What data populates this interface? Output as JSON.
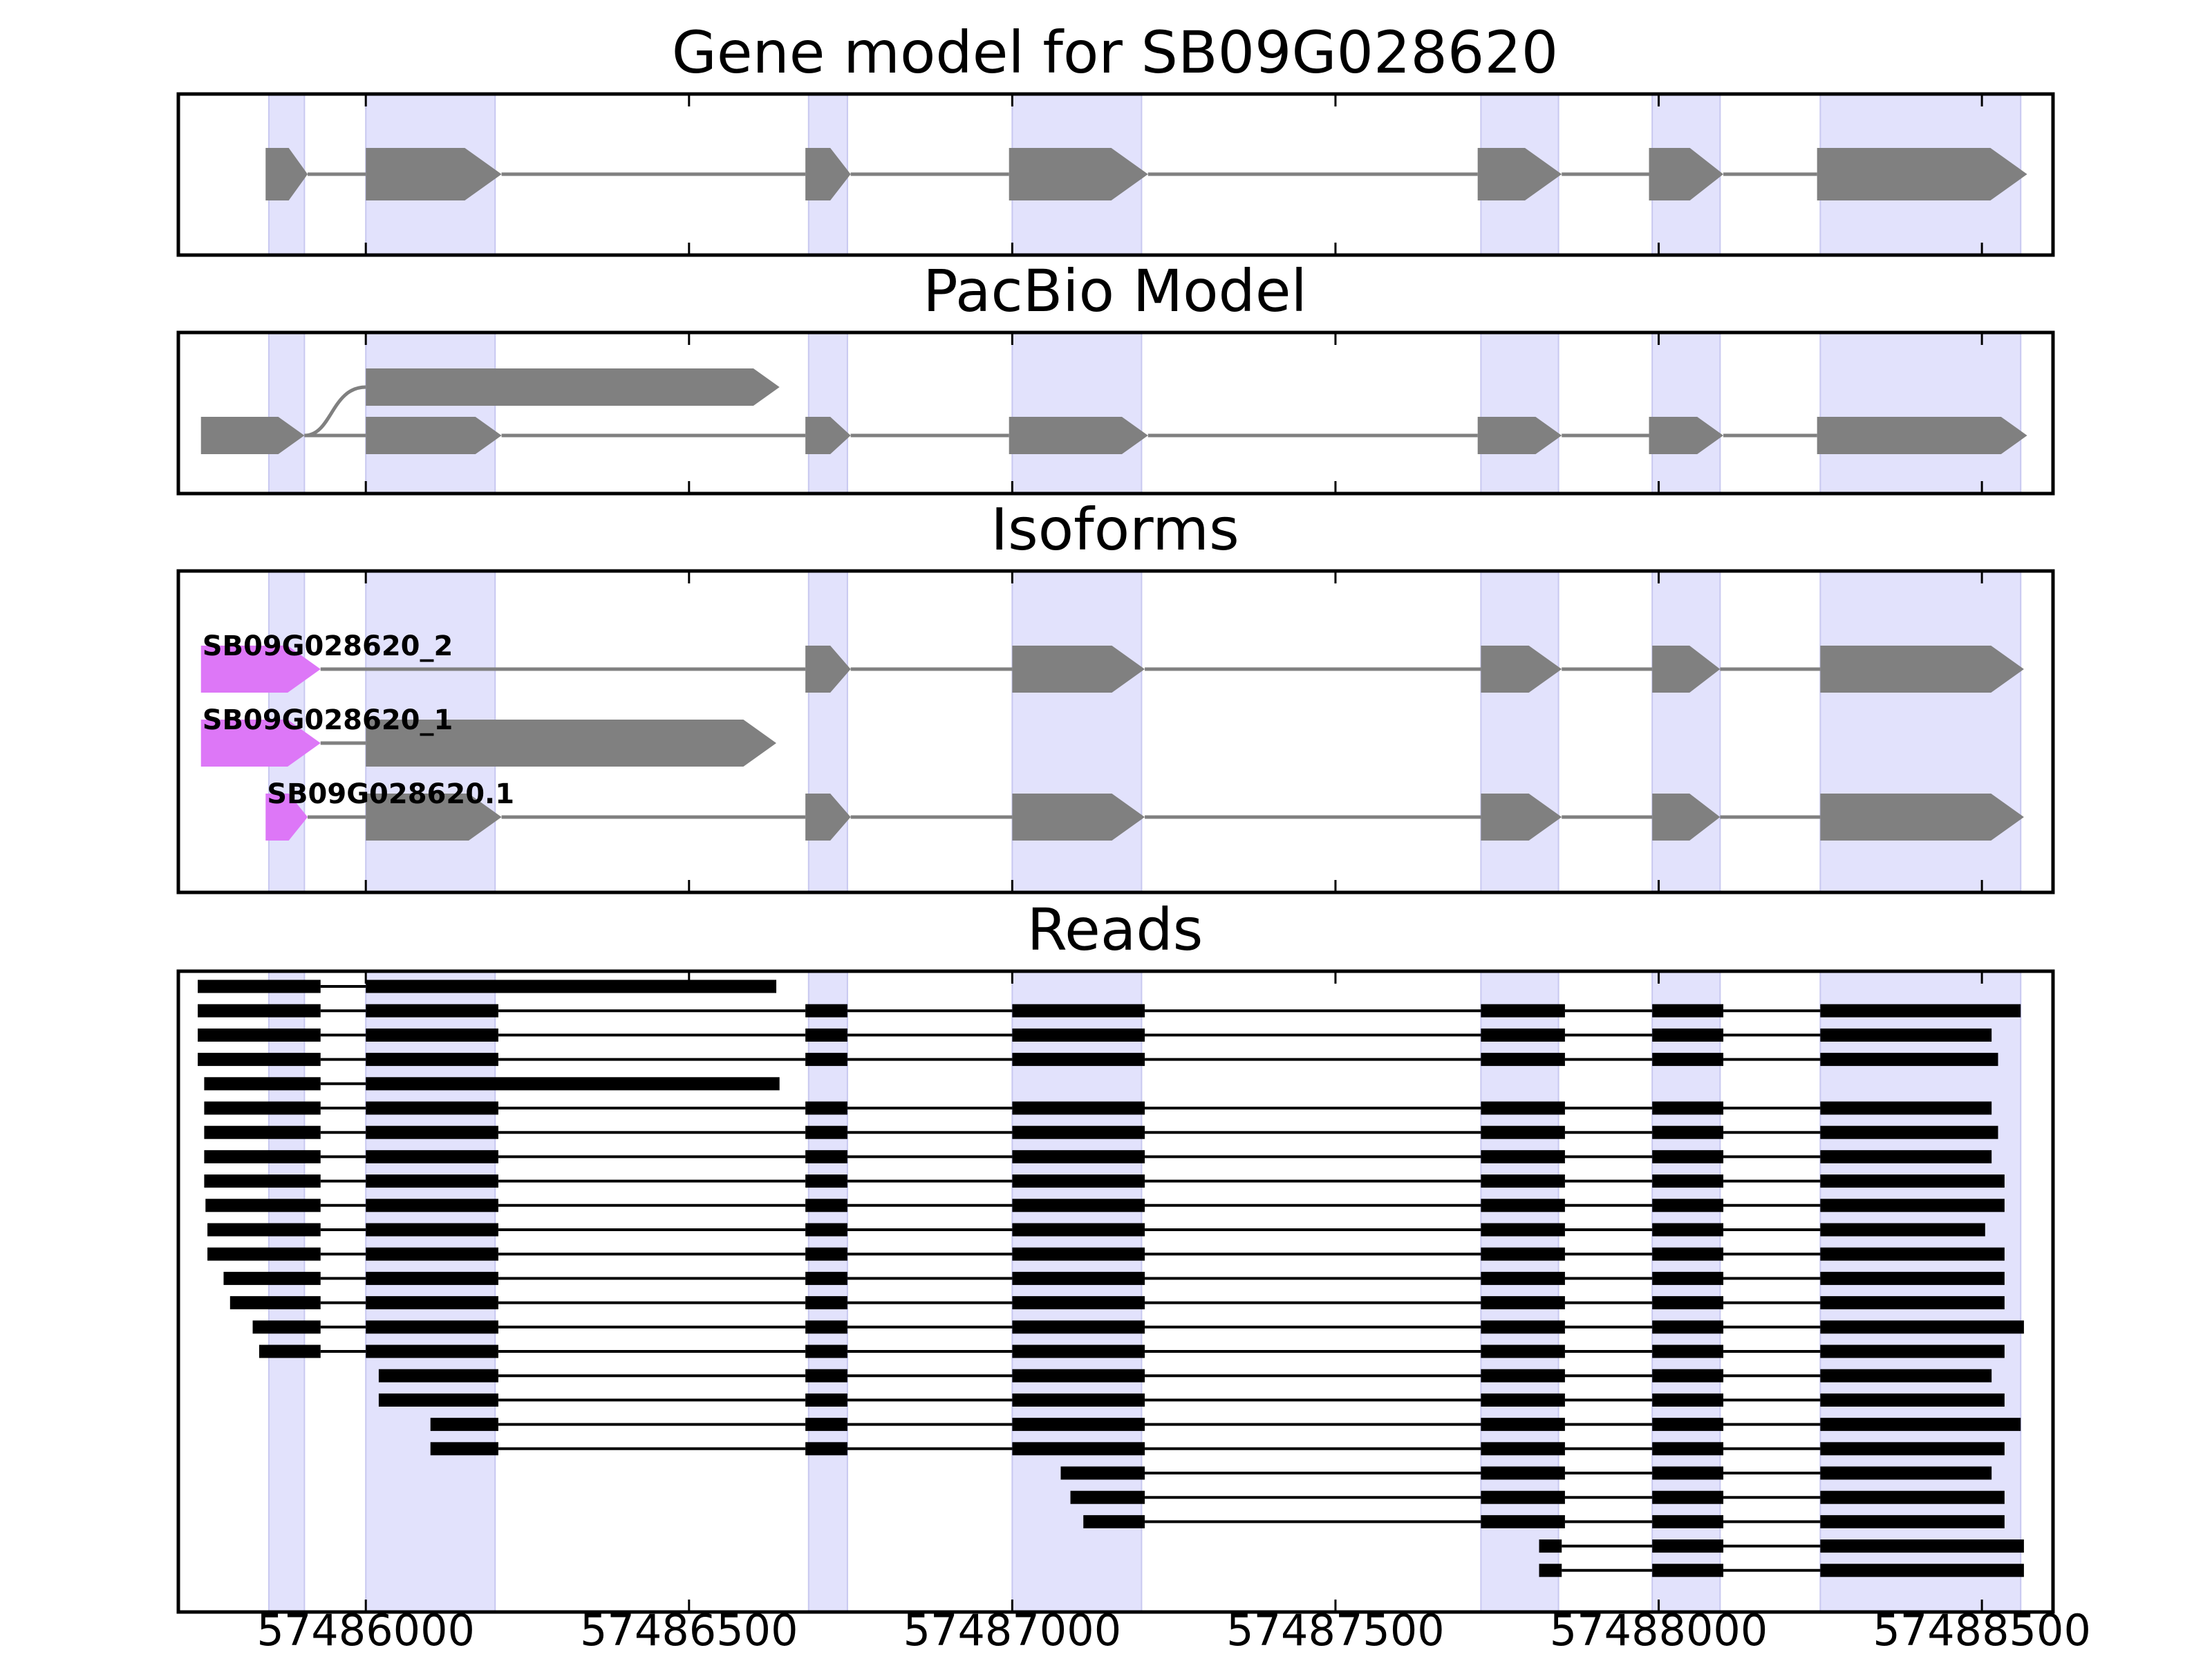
{
  "figure": {
    "x_axis": {
      "min": 57485710,
      "max": 57488610,
      "ticks": [
        57486000,
        57486500,
        57487000,
        57487500,
        57488000,
        57488500
      ],
      "tick_labels": [
        "57486000",
        "57486500",
        "57487000",
        "57487500",
        "57488000",
        "57488500"
      ]
    },
    "exon_bands": [
      [
        57485850,
        57485905
      ],
      [
        57486000,
        57486200
      ],
      [
        57486685,
        57486745
      ],
      [
        57487000,
        57487200
      ],
      [
        57487725,
        57487845
      ],
      [
        57487990,
        57488095
      ],
      [
        57488250,
        57488560
      ]
    ],
    "colors": {
      "band": "#e2e2fc",
      "band_edge": "#c8c8f0",
      "exon": "#808080",
      "intron": "#808080",
      "utr_highlight": "#dd77f7",
      "read": "#000000"
    }
  },
  "panels": [
    {
      "id": "gene-model",
      "title": "Gene model for SB09G028620",
      "tracks": [
        {
          "exons": [
            [
              57485845,
              57485910
            ],
            [
              57486000,
              57486210
            ],
            [
              57486680,
              57486750
            ],
            [
              57486995,
              57487210
            ],
            [
              57487720,
              57487850
            ],
            [
              57487985,
              57488100
            ],
            [
              57488245,
              57488570
            ]
          ]
        }
      ]
    },
    {
      "id": "pacbio-model",
      "title": "PacBio Model",
      "tracks": [
        {
          "level": 0,
          "exons": [
            [
              57486000,
              57486640
            ]
          ],
          "branch_from": 57485905
        },
        {
          "level": 1,
          "exons": [
            [
              57485745,
              57485905
            ],
            [
              57486000,
              57486210
            ],
            [
              57486680,
              57486750
            ],
            [
              57486995,
              57487210
            ],
            [
              57487720,
              57487850
            ],
            [
              57487985,
              57488100
            ],
            [
              57488245,
              57488570
            ]
          ]
        }
      ]
    },
    {
      "id": "isoforms",
      "title": "Isoforms",
      "tracks": [
        {
          "label": "SB09G028620_2",
          "utr": [
            57485745,
            57485930
          ],
          "exons": [
            [
              57485745,
              57485930
            ],
            [
              57486680,
              57486750
            ],
            [
              57487000,
              57487205
            ],
            [
              57487725,
              57487850
            ],
            [
              57487990,
              57488095
            ],
            [
              57488250,
              57488565
            ]
          ]
        },
        {
          "label": "SB09G028620_1",
          "utr": [
            57485745,
            57485930
          ],
          "exons": [
            [
              57485745,
              57485930
            ],
            [
              57486000,
              57486635
            ]
          ]
        },
        {
          "label": "SB09G028620.1",
          "utr": [
            57485845,
            57485910
          ],
          "exons": [
            [
              57485845,
              57485910
            ],
            [
              57486000,
              57486210
            ],
            [
              57486680,
              57486750
            ],
            [
              57487000,
              57487205
            ],
            [
              57487725,
              57487850
            ],
            [
              57487990,
              57488095
            ],
            [
              57488250,
              57488565
            ]
          ]
        }
      ]
    },
    {
      "id": "reads",
      "title": "Reads",
      "reads": [
        [
          [
            57485740,
            57485930
          ],
          [
            57486000,
            57486635
          ]
        ],
        [
          [
            57485740,
            57485930
          ],
          [
            57486000,
            57486205
          ],
          [
            57486680,
            57486745
          ],
          [
            57487000,
            57487205
          ],
          [
            57487725,
            57487855
          ],
          [
            57487990,
            57488100
          ],
          [
            57488250,
            57488560
          ]
        ],
        [
          [
            57485740,
            57485930
          ],
          [
            57486000,
            57486205
          ],
          [
            57486680,
            57486745
          ],
          [
            57487000,
            57487205
          ],
          [
            57487725,
            57487855
          ],
          [
            57487990,
            57488100
          ],
          [
            57488250,
            57488515
          ]
        ],
        [
          [
            57485740,
            57485930
          ],
          [
            57486000,
            57486205
          ],
          [
            57486680,
            57486745
          ],
          [
            57487000,
            57487205
          ],
          [
            57487725,
            57487855
          ],
          [
            57487990,
            57488100
          ],
          [
            57488250,
            57488525
          ]
        ],
        [
          [
            57485750,
            57485930
          ],
          [
            57486000,
            57486640
          ]
        ],
        [
          [
            57485750,
            57485930
          ],
          [
            57486000,
            57486205
          ],
          [
            57486680,
            57486745
          ],
          [
            57487000,
            57487205
          ],
          [
            57487725,
            57487855
          ],
          [
            57487990,
            57488100
          ],
          [
            57488250,
            57488515
          ]
        ],
        [
          [
            57485750,
            57485930
          ],
          [
            57486000,
            57486205
          ],
          [
            57486680,
            57486745
          ],
          [
            57487000,
            57487205
          ],
          [
            57487725,
            57487855
          ],
          [
            57487990,
            57488100
          ],
          [
            57488250,
            57488525
          ]
        ],
        [
          [
            57485750,
            57485930
          ],
          [
            57486000,
            57486205
          ],
          [
            57486680,
            57486745
          ],
          [
            57487000,
            57487205
          ],
          [
            57487725,
            57487855
          ],
          [
            57487990,
            57488100
          ],
          [
            57488250,
            57488515
          ]
        ],
        [
          [
            57485750,
            57485930
          ],
          [
            57486000,
            57486205
          ],
          [
            57486680,
            57486745
          ],
          [
            57487000,
            57487205
          ],
          [
            57487725,
            57487855
          ],
          [
            57487990,
            57488100
          ],
          [
            57488250,
            57488535
          ]
        ],
        [
          [
            57485752,
            57485930
          ],
          [
            57486000,
            57486205
          ],
          [
            57486680,
            57486745
          ],
          [
            57487000,
            57487205
          ],
          [
            57487725,
            57487855
          ],
          [
            57487990,
            57488100
          ],
          [
            57488250,
            57488535
          ]
        ],
        [
          [
            57485755,
            57485930
          ],
          [
            57486000,
            57486205
          ],
          [
            57486680,
            57486745
          ],
          [
            57487000,
            57487205
          ],
          [
            57487725,
            57487855
          ],
          [
            57487990,
            57488100
          ],
          [
            57488250,
            57488505
          ]
        ],
        [
          [
            57485755,
            57485930
          ],
          [
            57486000,
            57486205
          ],
          [
            57486680,
            57486745
          ],
          [
            57487000,
            57487205
          ],
          [
            57487725,
            57487855
          ],
          [
            57487990,
            57488100
          ],
          [
            57488250,
            57488535
          ]
        ],
        [
          [
            57485780,
            57485930
          ],
          [
            57486000,
            57486205
          ],
          [
            57486680,
            57486745
          ],
          [
            57487000,
            57487205
          ],
          [
            57487725,
            57487855
          ],
          [
            57487990,
            57488100
          ],
          [
            57488250,
            57488535
          ]
        ],
        [
          [
            57485790,
            57485930
          ],
          [
            57486000,
            57486205
          ],
          [
            57486680,
            57486745
          ],
          [
            57487000,
            57487205
          ],
          [
            57487725,
            57487855
          ],
          [
            57487990,
            57488100
          ],
          [
            57488250,
            57488535
          ]
        ],
        [
          [
            57485825,
            57485930
          ],
          [
            57486000,
            57486205
          ],
          [
            57486680,
            57486745
          ],
          [
            57487000,
            57487205
          ],
          [
            57487725,
            57487855
          ],
          [
            57487990,
            57488100
          ],
          [
            57488250,
            57488565
          ]
        ],
        [
          [
            57485835,
            57485930
          ],
          [
            57486000,
            57486205
          ],
          [
            57486680,
            57486745
          ],
          [
            57487000,
            57487205
          ],
          [
            57487725,
            57487855
          ],
          [
            57487990,
            57488100
          ],
          [
            57488250,
            57488535
          ]
        ],
        [
          [
            57486020,
            57486205
          ],
          [
            57486680,
            57486745
          ],
          [
            57487000,
            57487205
          ],
          [
            57487725,
            57487855
          ],
          [
            57487990,
            57488100
          ],
          [
            57488250,
            57488515
          ]
        ],
        [
          [
            57486020,
            57486205
          ],
          [
            57486680,
            57486745
          ],
          [
            57487000,
            57487205
          ],
          [
            57487725,
            57487855
          ],
          [
            57487990,
            57488100
          ],
          [
            57488250,
            57488535
          ]
        ],
        [
          [
            57486100,
            57486205
          ],
          [
            57486680,
            57486745
          ],
          [
            57487000,
            57487205
          ],
          [
            57487725,
            57487855
          ],
          [
            57487990,
            57488100
          ],
          [
            57488250,
            57488560
          ]
        ],
        [
          [
            57486100,
            57486205
          ],
          [
            57486680,
            57486745
          ],
          [
            57487000,
            57487205
          ],
          [
            57487725,
            57487855
          ],
          [
            57487990,
            57488100
          ],
          [
            57488250,
            57488535
          ]
        ],
        [
          [
            57487075,
            57487205
          ],
          [
            57487725,
            57487855
          ],
          [
            57487990,
            57488100
          ],
          [
            57488250,
            57488515
          ]
        ],
        [
          [
            57487090,
            57487205
          ],
          [
            57487725,
            57487855
          ],
          [
            57487990,
            57488100
          ],
          [
            57488250,
            57488535
          ]
        ],
        [
          [
            57487110,
            57487205
          ],
          [
            57487725,
            57487855
          ],
          [
            57487990,
            57488100
          ],
          [
            57488250,
            57488535
          ]
        ],
        [
          [
            57487815,
            57487850
          ],
          [
            57487990,
            57488100
          ],
          [
            57488250,
            57488565
          ]
        ],
        [
          [
            57487815,
            57487850
          ],
          [
            57487990,
            57488100
          ],
          [
            57488250,
            57488565
          ]
        ]
      ]
    }
  ]
}
